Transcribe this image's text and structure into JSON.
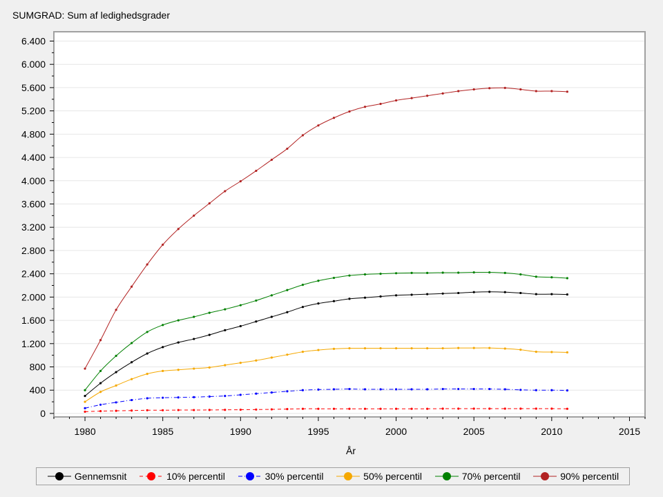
{
  "chart_data": {
    "type": "line",
    "title": "SUMGRAD: Sum af ledighedsgrader",
    "xlabel": "År",
    "ylabel": "",
    "xlim": [
      1978,
      2016
    ],
    "ylim": [
      -60,
      6560
    ],
    "xticks": [
      1980,
      1985,
      1990,
      1995,
      2000,
      2005,
      2010,
      2015
    ],
    "yticks": [
      0,
      400,
      800,
      1200,
      1600,
      2000,
      2400,
      2800,
      3200,
      3600,
      4000,
      4400,
      4800,
      5200,
      5600,
      6000,
      6400
    ],
    "ytick_labels": [
      "0",
      "400",
      "800",
      "1.200",
      "1.600",
      "2.000",
      "2.400",
      "2.800",
      "3.200",
      "3.600",
      "4.000",
      "4.400",
      "4.800",
      "5.200",
      "5.600",
      "6.000",
      "6.400"
    ],
    "grid": "horizontal",
    "legend_position": "bottom",
    "x": [
      1980,
      1981,
      1982,
      1983,
      1984,
      1985,
      1986,
      1987,
      1988,
      1989,
      1990,
      1991,
      1992,
      1993,
      1994,
      1995,
      1996,
      1997,
      1998,
      1999,
      2000,
      2001,
      2002,
      2003,
      2004,
      2005,
      2006,
      2007,
      2008,
      2009,
      2010,
      2011
    ],
    "series": [
      {
        "name": "Gennemsnit",
        "color": "#000000",
        "dash": "solid",
        "values": [
          300,
          520,
          710,
          880,
          1030,
          1140,
          1220,
          1280,
          1350,
          1430,
          1500,
          1580,
          1660,
          1740,
          1830,
          1890,
          1930,
          1970,
          1990,
          2010,
          2030,
          2040,
          2050,
          2060,
          2070,
          2085,
          2090,
          2085,
          2070,
          2050,
          2050,
          2045
        ]
      },
      {
        "name": "10% percentil",
        "color": "#ff0000",
        "dash": "dashed",
        "values": [
          30,
          40,
          45,
          50,
          55,
          55,
          58,
          58,
          60,
          62,
          64,
          67,
          70,
          75,
          80,
          80,
          80,
          80,
          80,
          80,
          80,
          80,
          80,
          82,
          82,
          82,
          82,
          82,
          82,
          82,
          82,
          80
        ]
      },
      {
        "name": "30% percentil",
        "color": "#0000ff",
        "dash": "dashdot",
        "values": [
          90,
          150,
          190,
          230,
          260,
          270,
          275,
          280,
          290,
          300,
          320,
          340,
          360,
          380,
          400,
          410,
          415,
          420,
          415,
          415,
          415,
          415,
          415,
          420,
          420,
          420,
          420,
          415,
          405,
          400,
          400,
          395
        ]
      },
      {
        "name": "50% percentil",
        "color": "#f5a800",
        "dash": "solid",
        "values": [
          200,
          370,
          480,
          590,
          680,
          730,
          750,
          770,
          790,
          830,
          870,
          910,
          960,
          1010,
          1060,
          1090,
          1110,
          1120,
          1120,
          1120,
          1120,
          1120,
          1120,
          1120,
          1125,
          1125,
          1125,
          1115,
          1095,
          1060,
          1055,
          1050
        ]
      },
      {
        "name": "70% percentil",
        "color": "#008000",
        "dash": "solid",
        "values": [
          400,
          730,
          990,
          1210,
          1400,
          1520,
          1600,
          1660,
          1730,
          1790,
          1860,
          1940,
          2030,
          2120,
          2210,
          2280,
          2330,
          2370,
          2390,
          2400,
          2410,
          2415,
          2415,
          2420,
          2420,
          2425,
          2425,
          2415,
          2390,
          2350,
          2340,
          2325
        ]
      },
      {
        "name": "90% percentil",
        "color": "#b22222",
        "dash": "solid",
        "values": [
          770,
          1260,
          1780,
          2180,
          2560,
          2900,
          3170,
          3400,
          3610,
          3820,
          3990,
          4170,
          4360,
          4550,
          4780,
          4950,
          5080,
          5190,
          5270,
          5320,
          5380,
          5420,
          5460,
          5500,
          5540,
          5570,
          5590,
          5595,
          5570,
          5540,
          5540,
          5530
        ]
      }
    ]
  }
}
